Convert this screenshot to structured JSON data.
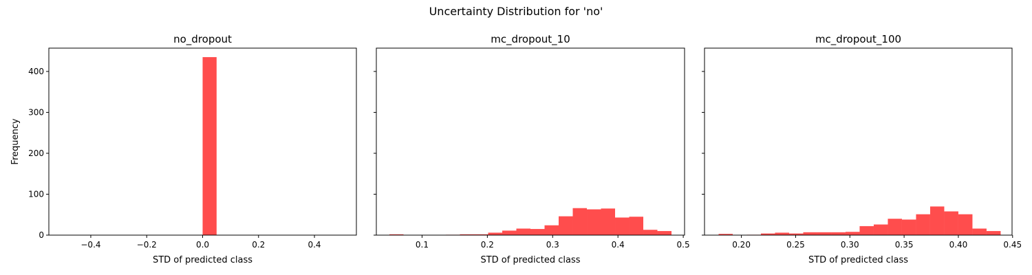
{
  "figure": {
    "suptitle": "Uncertainty Distribution for 'no'"
  },
  "colors": {
    "bar": "#ff4d4d",
    "axes": "#000000"
  },
  "chart_data": [
    {
      "type": "bar",
      "title": "no_dropout",
      "xlabel": "STD of predicted class",
      "ylabel": "Frequency",
      "xlim": [
        -0.55,
        0.55
      ],
      "ylim": [
        0,
        457
      ],
      "xticks": [
        -0.4,
        -0.2,
        0.0,
        0.2,
        0.4
      ],
      "xtick_labels": [
        "−0.4",
        "−0.2",
        "0.0",
        "0.2",
        "0.4"
      ],
      "yticks": [
        0,
        100,
        200,
        300,
        400
      ],
      "ytick_labels": [
        "0",
        "100",
        "200",
        "300",
        "400"
      ],
      "show_yticklabels": true,
      "bins": [
        {
          "x0": 0.0,
          "x1": 0.05,
          "value": 435
        }
      ]
    },
    {
      "type": "bar",
      "title": "mc_dropout_10",
      "xlabel": "STD of predicted class",
      "ylabel": "",
      "xlim": [
        0.03,
        0.502
      ],
      "ylim": [
        0,
        457
      ],
      "xticks": [
        0.1,
        0.2,
        0.3,
        0.4,
        0.5
      ],
      "xtick_labels": [
        "0.1",
        "0.2",
        "0.3",
        "0.4",
        "0.5"
      ],
      "yticks": [
        0,
        100,
        200,
        300,
        400
      ],
      "ytick_labels": [
        "0",
        "100",
        "200",
        "300",
        "400"
      ],
      "show_yticklabels": false,
      "bins": [
        {
          "x0": 0.05,
          "x1": 0.0716,
          "value": 2
        },
        {
          "x0": 0.0716,
          "x1": 0.0932,
          "value": 0
        },
        {
          "x0": 0.0932,
          "x1": 0.1148,
          "value": 0
        },
        {
          "x0": 0.1148,
          "x1": 0.1364,
          "value": 0
        },
        {
          "x0": 0.1364,
          "x1": 0.158,
          "value": 1
        },
        {
          "x0": 0.158,
          "x1": 0.1796,
          "value": 2
        },
        {
          "x0": 0.1796,
          "x1": 0.2012,
          "value": 2
        },
        {
          "x0": 0.2012,
          "x1": 0.2228,
          "value": 6
        },
        {
          "x0": 0.2228,
          "x1": 0.2444,
          "value": 11
        },
        {
          "x0": 0.2444,
          "x1": 0.266,
          "value": 16
        },
        {
          "x0": 0.266,
          "x1": 0.2876,
          "value": 15
        },
        {
          "x0": 0.2876,
          "x1": 0.3092,
          "value": 24
        },
        {
          "x0": 0.3092,
          "x1": 0.3308,
          "value": 46
        },
        {
          "x0": 0.3308,
          "x1": 0.3524,
          "value": 66
        },
        {
          "x0": 0.3524,
          "x1": 0.374,
          "value": 63
        },
        {
          "x0": 0.374,
          "x1": 0.3956,
          "value": 65
        },
        {
          "x0": 0.3956,
          "x1": 0.4172,
          "value": 43
        },
        {
          "x0": 0.4172,
          "x1": 0.4388,
          "value": 45
        },
        {
          "x0": 0.4388,
          "x1": 0.4604,
          "value": 13
        },
        {
          "x0": 0.4604,
          "x1": 0.482,
          "value": 10
        }
      ]
    },
    {
      "type": "bar",
      "title": "mc_dropout_100",
      "xlabel": "STD of predicted class",
      "ylabel": "",
      "xlim": [
        0.166,
        0.4495
      ],
      "ylim": [
        0,
        457
      ],
      "xticks": [
        0.2,
        0.25,
        0.3,
        0.35,
        0.4,
        0.45
      ],
      "xtick_labels": [
        "0.20",
        "0.25",
        "0.30",
        "0.35",
        "0.40",
        "0.45"
      ],
      "yticks": [
        0,
        100,
        200,
        300,
        400
      ],
      "ytick_labels": [
        "0",
        "100",
        "200",
        "300",
        "400"
      ],
      "show_yticklabels": false,
      "bins": [
        {
          "x0": 0.179,
          "x1": 0.192,
          "value": 3
        },
        {
          "x0": 0.192,
          "x1": 0.205,
          "value": 0
        },
        {
          "x0": 0.205,
          "x1": 0.218,
          "value": 1
        },
        {
          "x0": 0.218,
          "x1": 0.231,
          "value": 4
        },
        {
          "x0": 0.231,
          "x1": 0.244,
          "value": 6
        },
        {
          "x0": 0.244,
          "x1": 0.257,
          "value": 4
        },
        {
          "x0": 0.257,
          "x1": 0.27,
          "value": 7
        },
        {
          "x0": 0.27,
          "x1": 0.283,
          "value": 7
        },
        {
          "x0": 0.283,
          "x1": 0.296,
          "value": 7
        },
        {
          "x0": 0.296,
          "x1": 0.309,
          "value": 8
        },
        {
          "x0": 0.309,
          "x1": 0.322,
          "value": 22
        },
        {
          "x0": 0.322,
          "x1": 0.335,
          "value": 26
        },
        {
          "x0": 0.335,
          "x1": 0.348,
          "value": 40
        },
        {
          "x0": 0.348,
          "x1": 0.361,
          "value": 38
        },
        {
          "x0": 0.361,
          "x1": 0.374,
          "value": 51
        },
        {
          "x0": 0.374,
          "x1": 0.387,
          "value": 70
        },
        {
          "x0": 0.387,
          "x1": 0.4,
          "value": 58
        },
        {
          "x0": 0.4,
          "x1": 0.413,
          "value": 51
        },
        {
          "x0": 0.413,
          "x1": 0.426,
          "value": 16
        },
        {
          "x0": 0.426,
          "x1": 0.439,
          "value": 10
        }
      ]
    }
  ]
}
